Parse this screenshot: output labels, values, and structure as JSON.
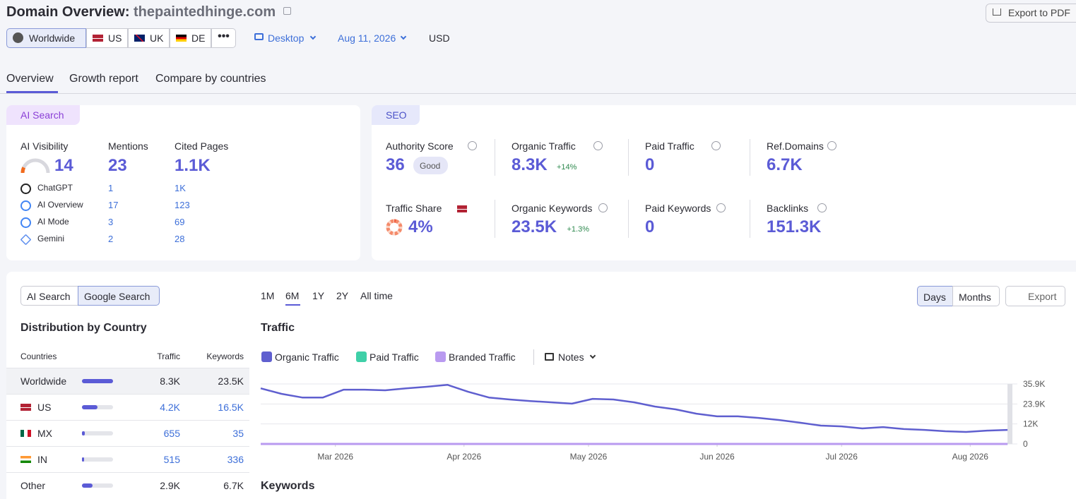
{
  "header": {
    "title": "Domain Overview:",
    "domain": "thepaintedhinge.com",
    "export_pdf": "Export to PDF"
  },
  "filters": {
    "regions": [
      "Worldwide",
      "US",
      "UK",
      "DE"
    ],
    "device": "Desktop",
    "date": "Aug 11, 2026",
    "currency": "USD"
  },
  "tabs": [
    "Overview",
    "Growth report",
    "Compare by countries"
  ],
  "ai_search": {
    "badge": "AI Search",
    "visibility_label": "AI Visibility",
    "visibility": 14,
    "mentions_label": "Mentions",
    "mentions": 23,
    "cited_label": "Cited Pages",
    "cited": "1.1K",
    "sources": [
      {
        "name": "ChatGPT",
        "mentions": 1,
        "cited": "1K"
      },
      {
        "name": "AI Overview",
        "mentions": 17,
        "cited": 123
      },
      {
        "name": "AI Mode",
        "mentions": 3,
        "cited": 69
      },
      {
        "name": "Gemini",
        "mentions": 2,
        "cited": 28
      }
    ]
  },
  "seo": {
    "badge": "SEO",
    "metrics": [
      {
        "label": "Authority Score",
        "value": 36,
        "badge": "Good"
      },
      {
        "label": "Organic Traffic",
        "value": "8.3K",
        "change": "+14%"
      },
      {
        "label": "Paid Traffic",
        "value": 0
      },
      {
        "label": "Ref.Domains",
        "value": "6.7K"
      },
      {
        "label": "Traffic Share",
        "value": 4,
        "value_label": "4%"
      },
      {
        "label": "Organic Keywords",
        "value": "23.5K",
        "change": "+1.3%"
      },
      {
        "label": "Paid Keywords",
        "value": 0
      },
      {
        "label": "Backlinks",
        "value": "151.3K"
      }
    ]
  },
  "countries": {
    "toggle": [
      "AI Search",
      "Google Search"
    ],
    "title": "Distribution by Country",
    "headers": [
      "Countries",
      "Traffic",
      "Keywords"
    ],
    "rows": [
      {
        "country": "Worldwide",
        "share": 100,
        "traffic": "8.3K",
        "keywords": "23.5K"
      },
      {
        "country": "US",
        "share": 51,
        "traffic": "4.2K",
        "keywords": "16.5K"
      },
      {
        "country": "MX",
        "share": 8,
        "traffic": 655,
        "keywords": 35
      },
      {
        "country": "IN",
        "share": 6,
        "traffic": 515,
        "keywords": 336
      },
      {
        "country": "Other",
        "share": 35,
        "traffic": "2.9K",
        "keywords": "6.7K"
      }
    ]
  },
  "chart_controls": {
    "periods": [
      "1M",
      "6M",
      "1Y",
      "2Y",
      "All time"
    ],
    "views": [
      "Days",
      "Months"
    ],
    "export": "Export",
    "notes": "Notes",
    "next_section": "Keywords"
  },
  "chart_data": {
    "type": "line",
    "title": "Traffic",
    "x": [
      0,
      5,
      10,
      15,
      20,
      25,
      30,
      35,
      40,
      45,
      50,
      55,
      60,
      65,
      70,
      75,
      80,
      85,
      90,
      95,
      100,
      105,
      110,
      115,
      120,
      125,
      130,
      135,
      140,
      145,
      150,
      155,
      160,
      165,
      170,
      175,
      180
    ],
    "xlim": [
      0,
      181
    ],
    "xticks": [
      {
        "value": 18,
        "label": "Mar 2026"
      },
      {
        "value": 49,
        "label": "Apr 2026"
      },
      {
        "value": 79,
        "label": "May 2026"
      },
      {
        "value": 110,
        "label": "Jun 2026"
      },
      {
        "value": 140,
        "label": "Jul 2026"
      },
      {
        "value": 171,
        "label": "Aug 2026"
      }
    ],
    "ylim": [
      0,
      35900
    ],
    "yticks": [
      {
        "value": 35900,
        "label": "35.9K"
      },
      {
        "value": 23900,
        "label": "23.9K"
      },
      {
        "value": 12000,
        "label": "12K"
      },
      0
    ],
    "grid": true,
    "series": [
      {
        "name": "Organic Traffic",
        "color": "#5f5fcf",
        "values": [
          33300,
          30000,
          27800,
          27800,
          32500,
          32500,
          32100,
          33300,
          34200,
          35400,
          31200,
          27800,
          26600,
          25700,
          24900,
          24100,
          27000,
          26600,
          24900,
          22400,
          20700,
          18100,
          16500,
          16500,
          15600,
          14300,
          12700,
          11000,
          10500,
          9300,
          10100,
          8900,
          8400,
          7600,
          7200,
          8000,
          8400
        ]
      },
      {
        "name": "Paid Traffic",
        "color": "#3fd0a8",
        "values": [
          0,
          0,
          0,
          0,
          0,
          0,
          0,
          0,
          0,
          0,
          0,
          0,
          0,
          0,
          0,
          0,
          0,
          0,
          0,
          0,
          0,
          0,
          0,
          0,
          0,
          0,
          0,
          0,
          0,
          0,
          0,
          0,
          0,
          0,
          0,
          0,
          0
        ]
      },
      {
        "name": "Branded Traffic",
        "color": "#b99af0",
        "values": [
          0,
          0,
          0,
          0,
          0,
          0,
          0,
          0,
          0,
          0,
          0,
          0,
          0,
          0,
          0,
          0,
          0,
          0,
          0,
          0,
          0,
          0,
          0,
          0,
          0,
          0,
          0,
          0,
          0,
          0,
          0,
          0,
          0,
          0,
          0,
          0,
          0
        ]
      }
    ]
  }
}
